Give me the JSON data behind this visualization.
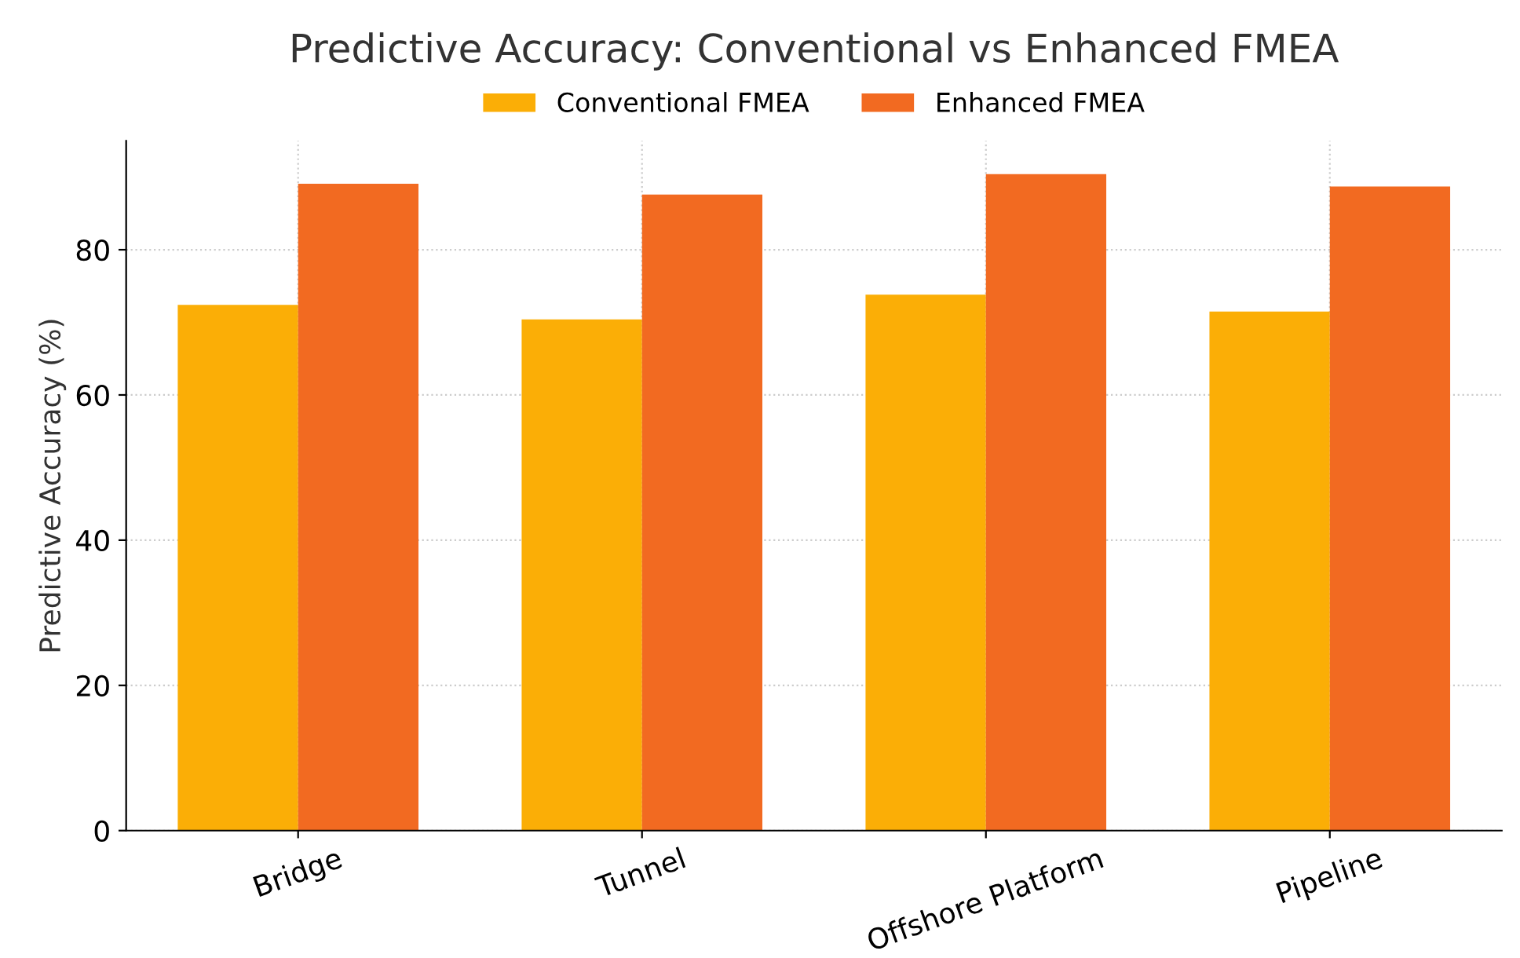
{
  "chart_data": {
    "type": "bar",
    "title": "Predictive Accuracy: Conventional vs Enhanced FMEA",
    "ylabel": "Predictive Accuracy (%)",
    "categories": [
      "Bridge",
      "Tunnel",
      "Offshore Platform",
      "Pipeline"
    ],
    "series": [
      {
        "name": "Conventional FMEA",
        "color": "#fbae06",
        "values": [
          72.4,
          70.4,
          73.8,
          71.5
        ]
      },
      {
        "name": "Enhanced FMEA",
        "color": "#f26a21",
        "values": [
          89.1,
          87.6,
          90.4,
          88.7
        ]
      }
    ],
    "ylim": [
      0,
      95
    ],
    "yticks": [
      0,
      20,
      40,
      60,
      80
    ],
    "grid": true,
    "legend": "top"
  }
}
